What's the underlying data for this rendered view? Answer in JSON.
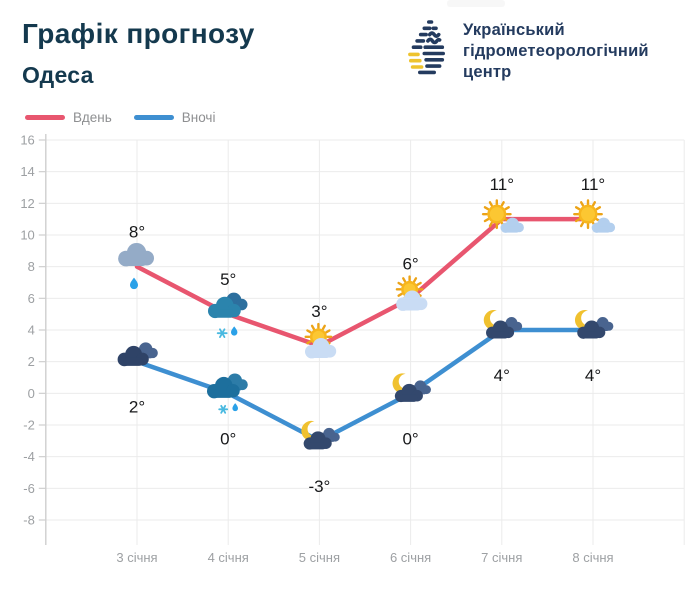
{
  "header": {
    "title": "Графік прогнозу",
    "subtitle": "Одеса",
    "logo": {
      "line1": "Український",
      "line2": "гідрометеорологічний",
      "line3": "центр"
    }
  },
  "colors": {
    "title": "#14394e",
    "logo_navy": "#243b5f",
    "logo_yellow": "#eec32d",
    "day_line": "#e8566f",
    "night_line": "#3e8fd1",
    "grid": "#ebebeb",
    "axis": "#cfcfcf",
    "axis_text": "#9da0a3",
    "temp_text": "#17181a"
  },
  "chart_data": {
    "type": "line",
    "title": "Графік прогнозу — Одеса",
    "categories": [
      "3 січня",
      "4 січня",
      "5 січня",
      "6 січня",
      "7 січня",
      "8 січня"
    ],
    "series": [
      {
        "name": "Вдень",
        "color": "#e8566f",
        "values": [
          8,
          5,
          3,
          6,
          11,
          11
        ],
        "labels": [
          "8°",
          "5°",
          "3°",
          "6°",
          "11°",
          "11°"
        ],
        "label_position": "above",
        "icons": [
          "cloud-rain-icon",
          "cloud-snow-rain-icon",
          "sun-behind-cloud-icon",
          "sun-behind-cloud-icon",
          "sun-small-cloud-icon",
          "sun-small-cloud-icon"
        ]
      },
      {
        "name": "Вночі",
        "color": "#3e8fd1",
        "values": [
          2,
          0,
          -3,
          0,
          4,
          4
        ],
        "labels": [
          "2°",
          "0°",
          "-3°",
          "0°",
          "4°",
          "4°"
        ],
        "label_position": "below",
        "icons": [
          "night-cloud-icon",
          "night-cloud-snow-icon",
          "moon-cloud-icon",
          "moon-cloud-icon",
          "moon-cloud-icon",
          "moon-cloud-icon"
        ]
      }
    ],
    "ylim": [
      -8,
      16
    ],
    "ytick_step": 2,
    "yticks": [
      16,
      14,
      12,
      10,
      8,
      6,
      4,
      2,
      0,
      -2,
      -4,
      -6,
      -8
    ],
    "grid": true,
    "legend_position": "top-left"
  }
}
